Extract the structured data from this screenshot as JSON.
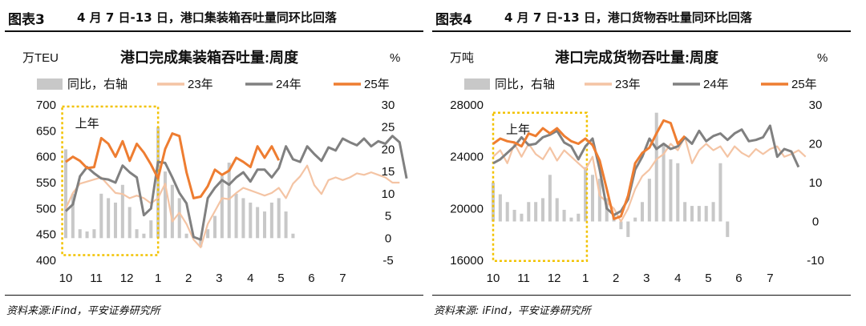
{
  "panels": [
    {
      "figure_label": "图表3",
      "header_title": "4 月 7 日-13 日，港口集装箱吞吐量同环比回落",
      "source": "资料来源:iFind，平安证券研究所",
      "chart_data": {
        "type": "line",
        "title": "港口完成集装箱吞吐量:周度",
        "ylabel_left": "万TEU",
        "ylabel_right": "%",
        "ylim_left": [
          400,
          700
        ],
        "yticks_left": [
          400,
          450,
          500,
          550,
          600,
          650,
          700
        ],
        "ylim_right": [
          -5,
          30
        ],
        "yticks_right": [
          -5,
          0,
          5,
          10,
          15,
          20,
          25,
          30
        ],
        "x_ticks": [
          "10",
          "11",
          "12",
          "1",
          "2",
          "3",
          "4",
          "5",
          "6",
          "7"
        ],
        "x_tick_positions": [
          0,
          4.3,
          8.6,
          13,
          17.3,
          21.6,
          26,
          30.3,
          34.6,
          39
        ],
        "x_max": 42,
        "highlight_box": {
          "label": "上年",
          "x_range": [
            -0.5,
            13
          ],
          "y_range": [
            410,
            697
          ]
        },
        "bars": {
          "name": "同比，右轴",
          "color": "#c8c8c8",
          "x_start": 0,
          "values": [
            20,
            10,
            2,
            1.5,
            2,
            10,
            9,
            8,
            12,
            7,
            2,
            1,
            4,
            25,
            15,
            12,
            9,
            1,
            0.5,
            -2,
            2,
            5,
            14,
            17,
            10,
            9,
            8,
            7,
            6,
            8,
            9,
            6,
            1
          ]
        },
        "series": [
          {
            "name": "23年",
            "color": "#f4c4a4",
            "x_start": 0,
            "values": [
              500,
              530,
              548,
              552,
              556,
              560,
              545,
              530,
              528,
              520,
              525,
              520,
              510,
              520,
              548,
              475,
              492,
              470,
              440,
              425,
              470,
              495,
              520,
              518,
              530,
              540,
              535,
              530,
              525,
              530,
              540,
              520,
              548,
              562,
              583,
              545,
              528,
              555,
              560,
              555,
              560,
              568,
              565,
              570,
              565,
              560,
              550,
              550
            ]
          },
          {
            "name": "24年",
            "color": "#808080",
            "x_start": 0,
            "values": [
              495,
              508,
              562,
              580,
              568,
              558,
              556,
              550,
              583,
              570,
              560,
              487,
              500,
              590,
              588,
              560,
              530,
              510,
              445,
              440,
              520,
              540,
              555,
              546,
              560,
              570,
              552,
              575,
              575,
              560,
              578,
              620,
              595,
              590,
              620,
              605,
              592,
              618,
              612,
              635,
              628,
              622,
              635,
              620,
              630,
              625,
              640,
              628,
              558
            ]
          },
          {
            "name": "25年",
            "color": "#ee7d31",
            "x_start": 0,
            "values": [
              590,
              600,
              592,
              578,
              580,
              636,
              625,
              600,
              630,
              592,
              625,
              608,
              585,
              558,
              615,
              645,
              640,
              570,
              520,
              523,
              543,
              575,
              565,
              573,
              598,
              590,
              580,
              620,
              598,
              620,
              593
            ]
          }
        ]
      }
    },
    {
      "figure_label": "图表4",
      "header_title": "4 月 7 日-13 日，港口货物吞吐量同环比回落",
      "source": "资料来源: iFind，平安证券研究所",
      "chart_data": {
        "type": "line",
        "title": "港口完成货物吞吐量:周度",
        "ylabel_left": "万吨",
        "ylabel_right": "%",
        "ylim_left": [
          16000,
          28000
        ],
        "yticks_left": [
          16000,
          20000,
          24000,
          28000
        ],
        "ylim_right": [
          -10,
          30
        ],
        "yticks_right": [
          -10,
          0,
          10,
          20,
          30
        ],
        "x_ticks": [
          "10",
          "11",
          "12",
          "1",
          "2",
          "3",
          "4",
          "5",
          "6",
          "7"
        ],
        "x_tick_positions": [
          0,
          4.3,
          8.6,
          13,
          17.3,
          21.6,
          26,
          30.3,
          34.6,
          39
        ],
        "x_max": 42,
        "highlight_box": {
          "label": "上年",
          "x_range": [
            0,
            13.2
          ],
          "y_range": [
            15950,
            27400
          ]
        },
        "bars": {
          "name": "同比，右轴",
          "color": "#c8c8c8",
          "x_start": 0,
          "values": [
            10,
            7,
            5,
            3,
            2,
            5,
            5,
            6,
            12,
            6,
            3,
            1,
            2,
            14,
            12,
            11,
            6,
            2,
            -2,
            -4,
            1,
            5,
            11,
            28,
            20,
            16,
            15,
            5,
            4,
            4,
            4,
            5,
            15,
            -4
          ]
        },
        "series": [
          {
            "name": "23年",
            "color": "#f4c4a4",
            "x_start": 0,
            "values": [
              24000,
              24500,
              23500,
              25000,
              24000,
              25000,
              24200,
              23800,
              24700,
              23700,
              24500,
              24000,
              23500,
              23000,
              24000,
              21000,
              20500,
              20000,
              19000,
              20000,
              21500,
              22500,
              23000,
              23800,
              24200,
              25000,
              24500,
              25500,
              23500,
              24500,
              25000,
              24500,
              24800,
              24000,
              24800,
              24300,
              24000,
              24600,
              24200,
              24600,
              24800,
              24000,
              24200,
              24500,
              24000
            ]
          },
          {
            "name": "24年",
            "color": "#808080",
            "x_start": 0,
            "values": [
              23500,
              23800,
              24300,
              24800,
              25500,
              24900,
              25000,
              25500,
              25700,
              26000,
              25100,
              24800,
              23800,
              24800,
              25400,
              23000,
              20000,
              19500,
              19800,
              20700,
              23000,
              24000,
              25400,
              24600,
              25000,
              24600,
              24800,
              25500,
              25000,
              26000,
              25200,
              25600,
              25800,
              25300,
              25800,
              26100,
              25200,
              25300,
              25500,
              26400,
              24000,
              24600,
              24400,
              23200
            ]
          },
          {
            "name": "25年",
            "color": "#ee7d31",
            "x_start": 0,
            "values": [
              25000,
              25400,
              25200,
              25100,
              24800,
              25800,
              25600,
              26200,
              25800,
              26200,
              25600,
              25200,
              25000,
              25400,
              24900,
              23700,
              21500,
              19200,
              19400,
              21000,
              23500,
              24300,
              24700,
              25800,
              26800,
              26600,
              25000,
              25600
            ]
          }
        ]
      }
    }
  ]
}
